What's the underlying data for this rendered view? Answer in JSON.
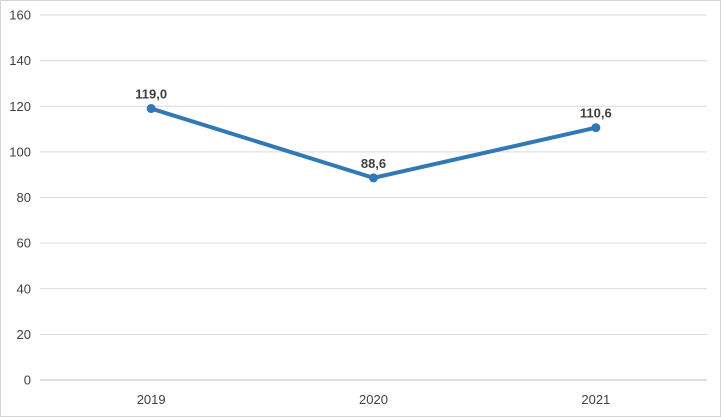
{
  "chart_data": {
    "type": "line",
    "title": "",
    "xlabel": "",
    "ylabel": "",
    "categories": [
      "2019",
      "2020",
      "2021"
    ],
    "series": [
      {
        "values": [
          119.0,
          88.6,
          110.6
        ],
        "data_labels": [
          "119,0",
          "88,6",
          "110,6"
        ]
      }
    ],
    "ylim": [
      0,
      160
    ],
    "yticks": [
      0,
      20,
      40,
      60,
      80,
      100,
      120,
      140,
      160
    ],
    "ytick_labels": [
      "0",
      "20",
      "40",
      "60",
      "80",
      "100",
      "120",
      "140",
      "160"
    ],
    "grid": "horizontal",
    "legend": "none",
    "colors": {
      "line": "#3178b7",
      "marker": "#3178b7",
      "gridline": "#d9d9d9",
      "axis_line": "#bfbfbf",
      "tick_text": "#404040",
      "data_label_text": "#3f3f3f",
      "background": "#ffffff",
      "border": "#d4d4d4"
    }
  }
}
